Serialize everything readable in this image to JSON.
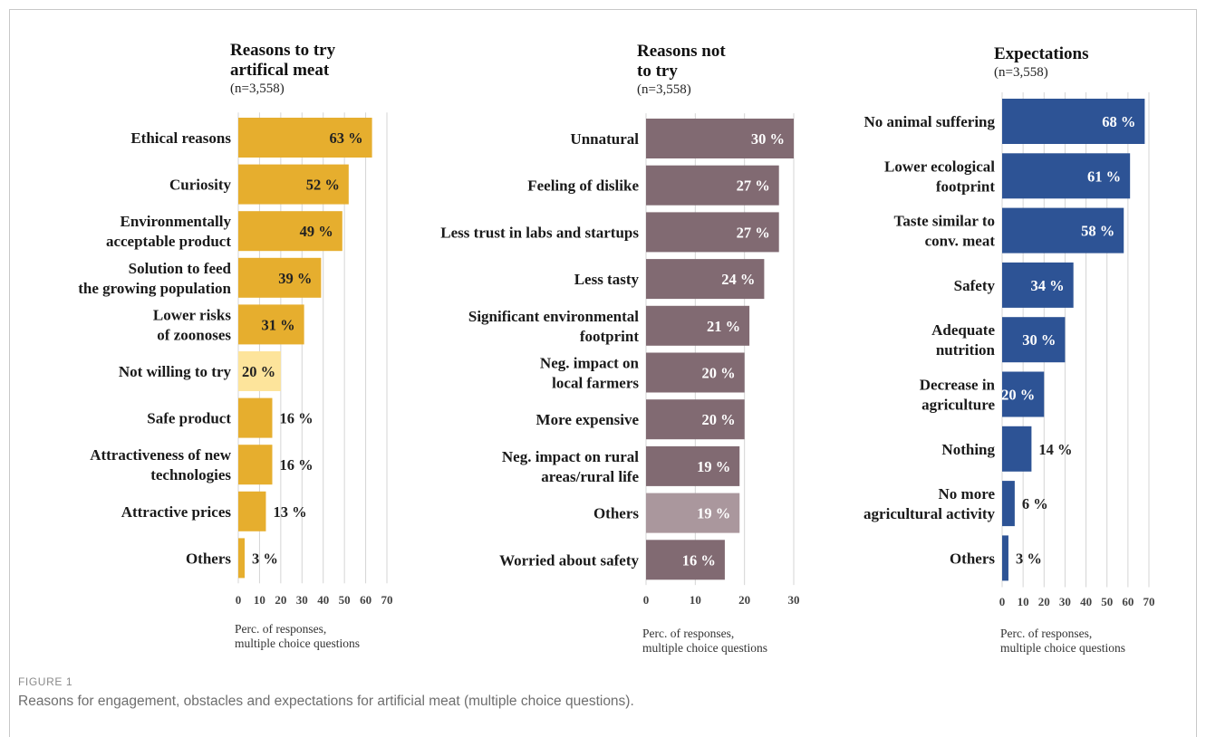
{
  "figure": {
    "label": "FIGURE 1",
    "caption": "Reasons for engagement, obstacles and expectations for artificial meat (multiple choice questions)."
  },
  "colors": {
    "gold": "#E6AE2E",
    "gold_light": "#FDE49B",
    "mauve": "#816A72",
    "mauve_light": "#AA979D",
    "blue": "#2D5395",
    "grid": "#d4d4d4"
  },
  "chart_data": [
    {
      "type": "bar",
      "orientation": "horizontal",
      "title_lines": [
        "Reasons to try",
        "artifical meat"
      ],
      "n_label": "(n=3,558)",
      "categories": [
        [
          "Ethical reasons"
        ],
        [
          "Curiosity"
        ],
        [
          "Environmentally",
          "acceptable product"
        ],
        [
          "Solution to feed",
          "the growing population"
        ],
        [
          "Lower risks",
          "of zoonoses"
        ],
        [
          "Not willing to try"
        ],
        [
          "Safe product"
        ],
        [
          "Attractiveness of new",
          "technologies"
        ],
        [
          "Attractive prices"
        ],
        [
          "Others"
        ]
      ],
      "values": [
        63,
        52,
        49,
        39,
        31,
        20,
        16,
        16,
        13,
        3
      ],
      "value_labels": [
        "63 %",
        "52 %",
        "49 %",
        "39 %",
        "31 %",
        "20 %",
        "16 %",
        "16 %",
        "13 %",
        "3 %"
      ],
      "bar_colors": [
        "gold",
        "gold",
        "gold",
        "gold",
        "gold",
        "gold_light",
        "gold",
        "gold",
        "gold",
        "gold"
      ],
      "labels_inside": [
        true,
        true,
        true,
        true,
        true,
        true,
        false,
        false,
        false,
        false
      ],
      "xlim": [
        0,
        70
      ],
      "xticks": [
        0,
        10,
        20,
        30,
        40,
        50,
        60,
        70
      ],
      "grid": true,
      "xlabel_lines": [
        "Perc. of responses,",
        "multiple choice questions"
      ]
    },
    {
      "type": "bar",
      "orientation": "horizontal",
      "title_lines": [
        "Reasons not",
        "to try"
      ],
      "n_label": "(n=3,558)",
      "categories": [
        [
          "Unnatural"
        ],
        [
          "Feeling of dislike"
        ],
        [
          "Less trust in labs and startups"
        ],
        [
          "Less tasty"
        ],
        [
          "Significant environmental",
          "footprint"
        ],
        [
          "Neg. impact on",
          "local farmers"
        ],
        [
          "More expensive"
        ],
        [
          "Neg. impact on rural",
          "areas/rural life"
        ],
        [
          "Others"
        ],
        [
          "Worried about safety"
        ]
      ],
      "values": [
        30,
        27,
        27,
        24,
        21,
        20,
        20,
        19,
        19,
        16
      ],
      "value_labels": [
        "30 %",
        "27 %",
        "27 %",
        "24 %",
        "21 %",
        "20 %",
        "20 %",
        "19 %",
        "19 %",
        "16 %"
      ],
      "bar_colors": [
        "mauve",
        "mauve",
        "mauve",
        "mauve",
        "mauve",
        "mauve",
        "mauve",
        "mauve",
        "mauve_light",
        "mauve"
      ],
      "labels_inside": [
        true,
        true,
        true,
        true,
        true,
        true,
        true,
        true,
        true,
        true
      ],
      "xlim": [
        0,
        30
      ],
      "xticks": [
        0,
        10,
        20,
        30
      ],
      "grid": true,
      "xlabel_lines": [
        "Perc. of responses,",
        "multiple choice questions"
      ]
    },
    {
      "type": "bar",
      "orientation": "horizontal",
      "title_lines": [
        "Expectations"
      ],
      "n_label": "(n=3,558)",
      "categories": [
        [
          "No animal suffering"
        ],
        [
          "Lower ecological",
          "footprint"
        ],
        [
          "Taste similar to",
          "conv. meat"
        ],
        [
          "Safety"
        ],
        [
          "Adequate",
          "nutrition"
        ],
        [
          "Decrease in",
          "agriculture"
        ],
        [
          "Nothing"
        ],
        [
          "No more",
          "agricultural activity"
        ],
        [
          "Others"
        ]
      ],
      "values": [
        68,
        61,
        58,
        34,
        30,
        20,
        14,
        6,
        3
      ],
      "value_labels": [
        "68 %",
        "61 %",
        "58 %",
        "34 %",
        "30 %",
        "20 %",
        "14 %",
        "6 %",
        "3 %"
      ],
      "bar_colors": [
        "blue",
        "blue",
        "blue",
        "blue",
        "blue",
        "blue",
        "blue",
        "blue",
        "blue"
      ],
      "labels_inside": [
        true,
        true,
        true,
        true,
        true,
        true,
        false,
        false,
        false
      ],
      "xlim": [
        0,
        70
      ],
      "xticks": [
        0,
        10,
        20,
        30,
        40,
        50,
        60,
        70
      ],
      "grid": true,
      "xlabel_lines": [
        "Perc. of responses,",
        "multiple choice questions"
      ]
    }
  ]
}
